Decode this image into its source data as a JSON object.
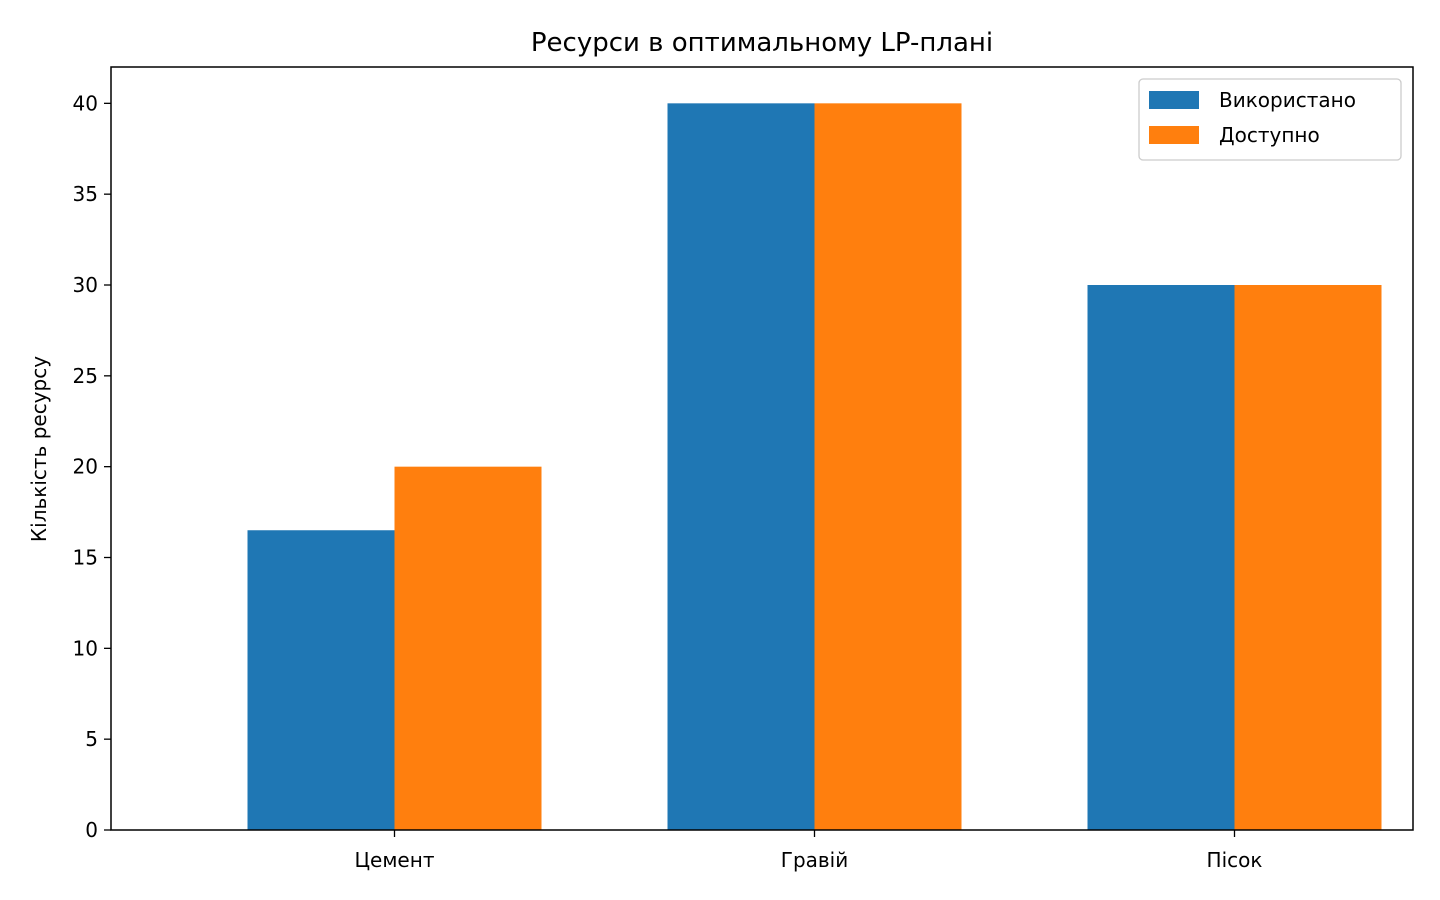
{
  "chart_data": {
    "type": "bar",
    "title": "Ресурси в оптимальному LP-плані",
    "xlabel": "",
    "ylabel": "Кількість ресурсу",
    "categories": [
      "Цемент",
      "Гравій",
      "Пісок"
    ],
    "series": [
      {
        "name": "Використано",
        "values": [
          16.5,
          40,
          30
        ],
        "color": "#1f77b4"
      },
      {
        "name": "Доступно",
        "values": [
          20,
          40,
          30
        ],
        "color": "#ff7f0e"
      }
    ],
    "ylim": [
      0,
      42
    ],
    "yticks": [
      0,
      5,
      10,
      15,
      20,
      25,
      30,
      35,
      40
    ],
    "grid": false,
    "legend": "top-right"
  }
}
